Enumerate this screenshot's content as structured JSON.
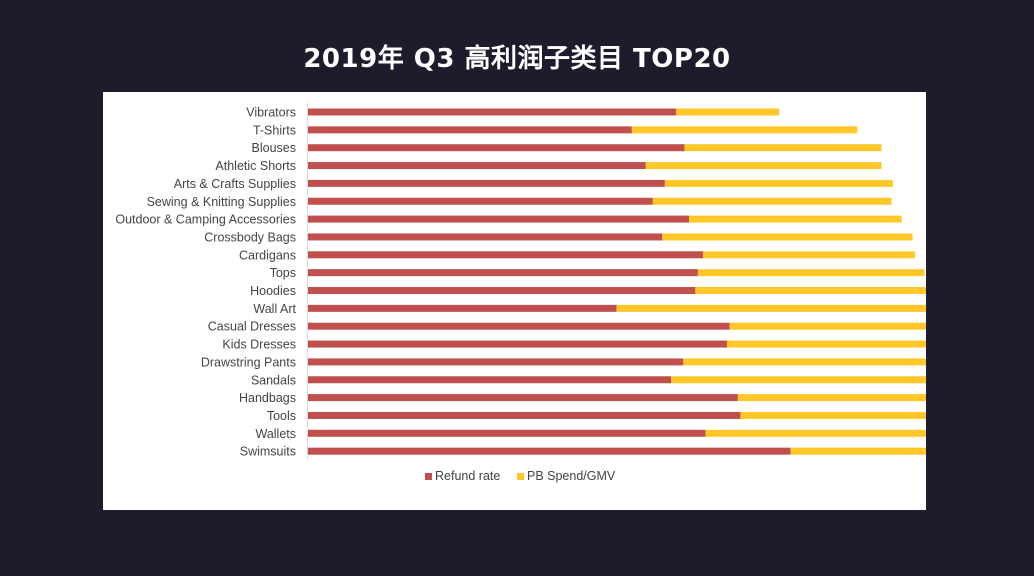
{
  "title": "2019年 Q3 高利润子类目 TOP20",
  "chart_data": {
    "type": "bar",
    "orientation": "horizontal",
    "stacked": true,
    "title": "2019年 Q3 高利润子类目 TOP20",
    "xlabel": "",
    "ylabel": "",
    "xlim": [
      0,
      100
    ],
    "grid": false,
    "legend_position": "bottom",
    "categories": [
      "Vibrators",
      "T-Shirts",
      "Blouses",
      "Athletic Shorts",
      "Arts & Crafts Supplies",
      "Sewing & Knitting Supplies",
      "Outdoor & Camping Accessories",
      "Crossbody Bags",
      "Cardigans",
      "Tops",
      "Hoodies",
      "Wall Art",
      "Casual Dresses",
      "Kids Dresses",
      "Drawstring Pants",
      "Sandals",
      "Handbags",
      "Tools",
      "Wallets",
      "Swimsuits"
    ],
    "series": [
      {
        "name": "Refund rate",
        "color": "#c0504d",
        "values": [
          58.0,
          51.0,
          59.3,
          53.2,
          56.2,
          54.3,
          60.0,
          55.8,
          62.2,
          61.4,
          61.0,
          48.6,
          66.4,
          66.0,
          59.1,
          57.2,
          67.7,
          68.1,
          62.6,
          76.0
        ]
      },
      {
        "name": "PB Spend/GMV",
        "color": "#ffc727",
        "values": [
          16.2,
          35.5,
          31.0,
          37.1,
          35.9,
          37.6,
          33.5,
          39.4,
          33.4,
          35.7,
          36.7,
          49.0,
          32.3,
          32.7,
          39.6,
          41.5,
          31.5,
          31.3,
          36.8,
          24.0
        ]
      }
    ]
  }
}
